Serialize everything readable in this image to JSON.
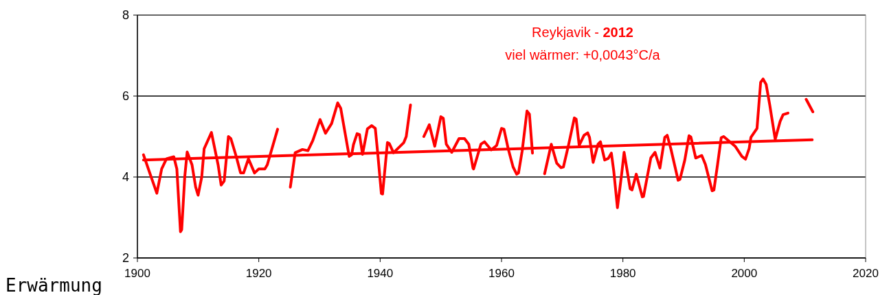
{
  "chart_data": {
    "type": "line",
    "title": "Reykjavik - 2012",
    "subtitle": "viel wärmer: +0,0043°C/a",
    "annotations": [
      "Erwärmung"
    ],
    "xlim": [
      1900,
      2020
    ],
    "xticks": [
      1900,
      1920,
      1940,
      1960,
      1980,
      2000,
      2020
    ],
    "ylim": [
      2,
      8
    ],
    "yticks": [
      2,
      4,
      6,
      8
    ],
    "grid": "y",
    "marker": "none",
    "line_style": "solid",
    "series": [
      {
        "color": "#ff0000",
        "x": [
          1901.0,
          1902.5,
          1903.2,
          1904,
          1904.8,
          1906,
          1906.5,
          1907.1,
          1907.3,
          1907.8,
          1908.2,
          1909,
          1909.6,
          1910,
          1910.6,
          1911,
          1912.2,
          1913.3,
          1913.8,
          1914.3,
          1915,
          1915.4,
          1916.3,
          1917,
          1917.5,
          1918.3,
          1919.3,
          1920,
          1921,
          1921.4,
          1923.1,
          1924,
          1925.2,
          1926.0,
          1927.2,
          1928.1,
          1928.9,
          1930.1,
          1931.0,
          1932.0,
          1933.0,
          1933.5,
          1934.9,
          1935.3,
          1935.6,
          1936.2,
          1936.6,
          1937.1,
          1937.9,
          1938.6,
          1939.2,
          1939.6,
          1940.2,
          1940.4,
          1941.2,
          1941.5,
          1942.2,
          1943.9,
          1944.3,
          1945.0,
          1946,
          1947.2,
          1948.1,
          1949.0,
          1950.0,
          1950.4,
          1950.9,
          1951.8,
          1953.0,
          1953.9,
          1954.6,
          1955.3,
          1955.4,
          1956.6,
          1957.2,
          1958.3,
          1959.2,
          1960.0,
          1960.4,
          1961.1,
          1961.9,
          1962.5,
          1962.8,
          1963.4,
          1964.2,
          1964.6,
          1965.1,
          1966,
          1967.1,
          1968.2,
          1969.1,
          1969.8,
          1970.2,
          1971.0,
          1972.0,
          1972.3,
          1972.8,
          1973.6,
          1974.2,
          1974.5,
          1975.1,
          1975.9,
          1976.3,
          1977.0,
          1977.6,
          1978.1,
          1978.5,
          1979.1,
          1979.8,
          1980.2,
          1981.2,
          1981.5,
          1982.2,
          1983.2,
          1983.4,
          1984.6,
          1985.3,
          1986.1,
          1986.9,
          1987.3,
          1987.9,
          1989.1,
          1989.4,
          1990.2,
          1990.9,
          1991.2,
          1992.0,
          1993.0,
          1993.6,
          1994.7,
          1995.0,
          1995.6,
          1996.2,
          1996.6,
          1998.5,
          1999.6,
          2000.2,
          2000.8,
          2001.1,
          2002.1,
          2002.7,
          2003.1,
          2003.6,
          2004.2,
          2005.1,
          2005.9,
          2006.4,
          2007.2,
          2009,
          2010.2,
          2011.3
        ],
        "values": [
          4.55,
          3.9,
          3.6,
          4.2,
          4.45,
          4.5,
          4.2,
          2.65,
          2.7,
          4.0,
          4.62,
          4.3,
          3.75,
          3.55,
          4.0,
          4.7,
          5.1,
          4.3,
          3.8,
          3.9,
          5.0,
          4.95,
          4.5,
          4.1,
          4.1,
          4.45,
          4.1,
          4.2,
          4.2,
          4.3,
          5.18,
          null,
          3.75,
          4.6,
          4.68,
          4.65,
          4.9,
          5.42,
          5.08,
          5.32,
          5.83,
          5.7,
          4.51,
          4.55,
          4.8,
          5.07,
          5.05,
          4.56,
          5.19,
          5.27,
          5.2,
          4.59,
          3.59,
          3.58,
          4.85,
          4.83,
          4.6,
          4.85,
          5.0,
          5.78,
          null,
          5.0,
          5.29,
          4.76,
          5.49,
          5.45,
          4.81,
          4.61,
          4.95,
          4.95,
          4.81,
          4.22,
          4.2,
          4.81,
          4.87,
          4.67,
          4.78,
          5.2,
          5.18,
          4.7,
          4.25,
          4.07,
          4.1,
          4.64,
          5.63,
          5.55,
          4.59,
          null,
          4.08,
          4.81,
          4.34,
          4.23,
          4.25,
          4.76,
          5.46,
          5.43,
          4.78,
          5.03,
          5.09,
          4.98,
          4.36,
          4.81,
          4.87,
          4.42,
          4.46,
          4.59,
          4.14,
          3.24,
          4.08,
          4.61,
          3.71,
          3.68,
          4.07,
          3.51,
          3.52,
          4.47,
          4.61,
          4.22,
          4.98,
          5.03,
          4.7,
          3.92,
          3.94,
          4.42,
          5.02,
          4.99,
          4.47,
          4.53,
          4.31,
          3.66,
          3.68,
          4.31,
          4.97,
          5.0,
          4.76,
          4.51,
          4.44,
          4.7,
          4.98,
          5.2,
          6.34,
          6.42,
          6.29,
          5.78,
          4.93,
          5.37,
          5.54,
          5.58,
          null,
          5.92,
          5.61
        ]
      },
      {
        "type": "line",
        "color": "#ff0000",
        "x": [
          1901,
          2011.2
        ],
        "values": [
          4.42,
          4.92
        ]
      }
    ]
  }
}
